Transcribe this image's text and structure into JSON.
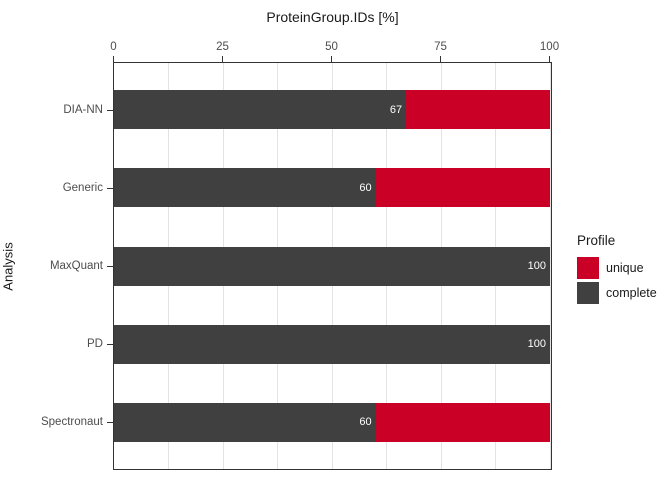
{
  "chart_data": {
    "type": "bar",
    "orientation": "horizontal",
    "stacked": true,
    "title": "ProteinGroup.IDs [%]",
    "xlabel": "ProteinGroup.IDs [%]",
    "ylabel": "Analysis",
    "categories": [
      "DIA-NN",
      "Generic",
      "MaxQuant",
      "PD",
      "Spectronaut"
    ],
    "series": [
      {
        "name": "complete",
        "color": "#404040",
        "values": [
          67,
          60,
          100,
          100,
          60
        ]
      },
      {
        "name": "unique",
        "color": "#cb0026",
        "values": [
          33,
          40,
          0,
          0,
          40
        ]
      }
    ],
    "bar_labels": [
      "67",
      "60",
      "100",
      "100",
      "60"
    ],
    "x_ticks": [
      "0",
      "25",
      "50",
      "75",
      "100"
    ],
    "xlim": [
      0,
      100
    ],
    "grid": {
      "vertical_line_interval": 12.5,
      "color": "#e3e3e3",
      "horizontal": false
    },
    "legend_position": "right"
  },
  "legend": {
    "title": "Profile",
    "items": [
      {
        "label": "unique",
        "color": "#cb0026"
      },
      {
        "label": "complete",
        "color": "#404040"
      }
    ]
  },
  "colors": {
    "background": "#ffffff",
    "panel_border": "#333333",
    "axis_text": "#4d4d4d",
    "title_text": "#1a1a1a",
    "bar_label_text": "#ffffff"
  }
}
